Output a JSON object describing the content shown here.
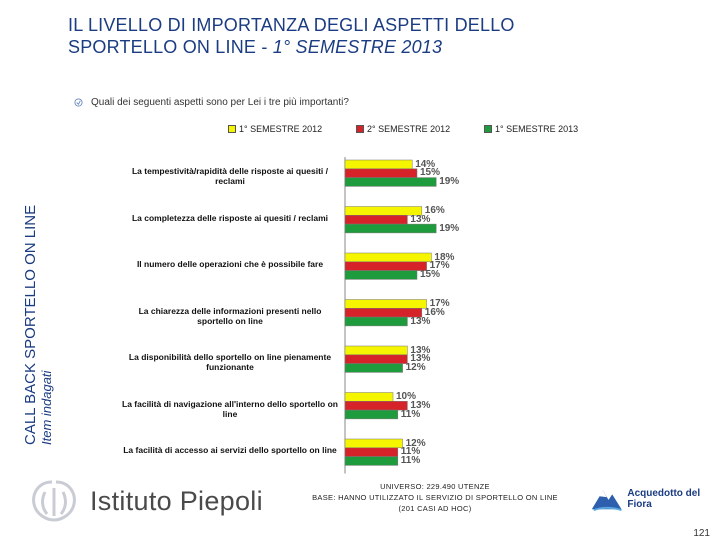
{
  "title": {
    "line1": "IL LIVELLO DI IMPORTANZA DEGLI ASPETTI DELLO",
    "line2_prefix": "SPORTELLO ON LINE - ",
    "line2_italic": "1° SEMESTRE 2013"
  },
  "side": {
    "line1": "CALL BACK SPORTELLO ON LINE",
    "line2": "Item indagati"
  },
  "question": "Quali dei seguenti aspetti sono per Lei i tre più importanti?",
  "colors": {
    "s2012_1": "#f5f500",
    "s2012_2": "#d6232a",
    "s2013_1": "#1e9b3c"
  },
  "chart_data": {
    "type": "bar",
    "orientation": "horizontal",
    "title": "",
    "xlabel": "",
    "ylabel": "",
    "xlim": [
      0,
      20
    ],
    "unit": "%",
    "legend_position": "top",
    "categories": [
      "La tempestività/rapidità delle risposte ai quesiti / reclami",
      "La completezza delle risposte ai quesiti / reclami",
      "Il numero delle operazioni che è possibile fare",
      "La chiarezza delle informazioni presenti nello sportello on line",
      "La disponibilità dello sportello on line pienamente funzionante",
      "La facilità di navigazione all'interno dello sportello on line",
      "La facilità di accesso ai servizi dello sportello on line"
    ],
    "series": [
      {
        "name": "1° SEMESTRE 2012",
        "values": [
          14,
          16,
          18,
          17,
          13,
          10,
          12
        ]
      },
      {
        "name": "2° SEMESTRE 2012",
        "values": [
          15,
          13,
          17,
          16,
          13,
          13,
          11
        ]
      },
      {
        "name": "1° SEMESTRE 2013",
        "values": [
          19,
          19,
          15,
          13,
          12,
          11,
          11
        ]
      }
    ]
  },
  "footer": {
    "logo_text": "Istituto Piepoli",
    "universe_line1": "UNIVERSO: 229.490 UTENZE",
    "universe_line2": "BASE: HANNO UTILIZZATO IL SERVIZIO DI SPORTELLO ON LINE",
    "universe_line3": "(201 CASI AD HOC)",
    "brand": "Acquedotto del Fiora",
    "page_number": "121"
  }
}
